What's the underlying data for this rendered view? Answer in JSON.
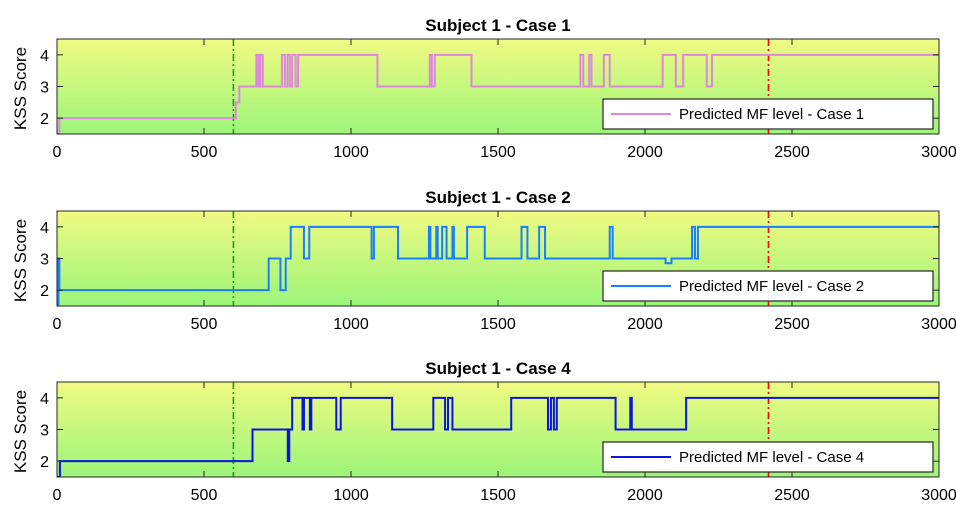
{
  "chart_data": [
    {
      "type": "line",
      "title": "Subject 1 - Case 1",
      "ylabel": "KSS Score",
      "xlabel": "",
      "xlim": [
        0,
        3000
      ],
      "ylim": [
        1.5,
        4.5
      ],
      "xticks": [
        "0",
        "500",
        "1000",
        "1500",
        "2000",
        "2500",
        "3000"
      ],
      "yticks": [
        "2",
        "3",
        "4"
      ],
      "background": "yellow-green vertical gradient",
      "vlines": [
        {
          "x": 600,
          "color": "#1aa01a",
          "style": "dash-dot"
        },
        {
          "x": 2420,
          "color": "#ff0000",
          "style": "dash-dot"
        }
      ],
      "legend_position": "bottom-right",
      "series": [
        {
          "name": "Predicted MF level - Case 1",
          "color": "#dd88dd",
          "x": [
            0,
            8,
            8,
            608,
            608,
            620,
            620,
            678,
            678,
            685,
            685,
            692,
            692,
            700,
            700,
            710,
            710,
            765,
            765,
            775,
            775,
            784,
            784,
            792,
            792,
            800,
            800,
            812,
            812,
            820,
            820,
            1090,
            1090,
            1100,
            1100,
            1110,
            1110,
            1268,
            1268,
            1275,
            1275,
            1285,
            1285,
            1410,
            1410,
            1780,
            1780,
            1790,
            1790,
            1810,
            1810,
            1818,
            1818,
            1860,
            1860,
            1880,
            1880,
            2060,
            2060,
            2105,
            2105,
            2130,
            2130,
            2210,
            2210,
            2228,
            2228,
            2238,
            2238,
            3000
          ],
          "y": [
            1.5,
            1.5,
            2,
            2,
            2.5,
            2.5,
            3,
            3,
            4,
            4,
            3,
            3,
            4,
            4,
            3,
            3,
            3,
            3,
            4,
            4,
            3,
            3,
            4,
            4,
            3,
            3,
            4,
            4,
            3,
            3,
            4,
            4,
            3,
            3,
            3,
            3,
            3,
            3,
            4,
            4,
            3,
            3,
            4,
            4,
            3,
            3,
            4,
            4,
            3,
            3,
            4,
            4,
            3,
            3,
            4,
            4,
            3,
            3,
            4,
            4,
            3,
            3,
            4,
            4,
            3,
            3,
            4,
            4,
            4,
            4
          ]
        }
      ]
    },
    {
      "type": "line",
      "title": "Subject 1 - Case 2",
      "ylabel": "KSS Score",
      "xlabel": "",
      "xlim": [
        0,
        3000
      ],
      "ylim": [
        1.5,
        4.5
      ],
      "xticks": [
        "0",
        "500",
        "1000",
        "1500",
        "2000",
        "2500",
        "3000"
      ],
      "yticks": [
        "2",
        "3",
        "4"
      ],
      "background": "yellow-green vertical gradient",
      "vlines": [
        {
          "x": 600,
          "color": "#1aa01a",
          "style": "dash-dot"
        },
        {
          "x": 2420,
          "color": "#ff0000",
          "style": "dash-dot"
        }
      ],
      "legend_position": "bottom-right",
      "series": [
        {
          "name": "Predicted MF level - Case 2",
          "color": "#1a7fff",
          "x": [
            0,
            5,
            5,
            8,
            8,
            720,
            720,
            760,
            760,
            778,
            778,
            795,
            795,
            840,
            840,
            858,
            858,
            1070,
            1070,
            1078,
            1078,
            1160,
            1160,
            1265,
            1265,
            1270,
            1270,
            1290,
            1290,
            1295,
            1295,
            1310,
            1310,
            1325,
            1325,
            1345,
            1345,
            1350,
            1350,
            1395,
            1395,
            1455,
            1455,
            1580,
            1580,
            1600,
            1600,
            1640,
            1640,
            1660,
            1660,
            1880,
            1880,
            1890,
            1890,
            2070,
            2070,
            2090,
            2090,
            2160,
            2160,
            2170,
            2170,
            2180,
            2180,
            3000
          ],
          "y": [
            1.5,
            1.5,
            3,
            3,
            2,
            2,
            3,
            3,
            2,
            2,
            3,
            3,
            4,
            4,
            3,
            3,
            4,
            4,
            3,
            3,
            4,
            4,
            3,
            3,
            4,
            4,
            3,
            3,
            4,
            4,
            3,
            3,
            4,
            4,
            3,
            3,
            4,
            4,
            3,
            3,
            4,
            4,
            3,
            3,
            4,
            4,
            3,
            3,
            4,
            4,
            3,
            3,
            4,
            4,
            3,
            3,
            2.85,
            2.85,
            3,
            3,
            4,
            4,
            3,
            3,
            4,
            4
          ]
        }
      ]
    },
    {
      "type": "line",
      "title": "Subject 1 - Case 4",
      "ylabel": "KSS Score",
      "xlabel": "",
      "xlim": [
        0,
        3000
      ],
      "ylim": [
        1.5,
        4.5
      ],
      "xticks": [
        "0",
        "500",
        "1000",
        "1500",
        "2000",
        "2500",
        "3000"
      ],
      "yticks": [
        "2",
        "3",
        "4"
      ],
      "background": "yellow-green vertical gradient",
      "vlines": [
        {
          "x": 600,
          "color": "#1aa01a",
          "style": "dash-dot"
        },
        {
          "x": 2420,
          "color": "#ff0000",
          "style": "dash-dot"
        }
      ],
      "legend_position": "bottom-right",
      "series": [
        {
          "name": "Predicted MF level - Case 4",
          "color": "#0a14dd",
          "x": [
            0,
            10,
            10,
            665,
            665,
            785,
            785,
            790,
            790,
            800,
            800,
            835,
            835,
            840,
            840,
            860,
            860,
            865,
            865,
            950,
            950,
            965,
            965,
            1140,
            1140,
            1280,
            1280,
            1320,
            1320,
            1330,
            1330,
            1345,
            1345,
            1545,
            1545,
            1670,
            1670,
            1680,
            1680,
            1690,
            1690,
            1700,
            1700,
            1900,
            1900,
            1950,
            1950,
            1955,
            1955,
            1960,
            1960,
            2140,
            2140,
            3000
          ],
          "y": [
            1.5,
            1.5,
            2,
            2,
            3,
            3,
            2,
            2,
            3,
            3,
            4,
            4,
            3,
            3,
            4,
            4,
            3,
            3,
            4,
            4,
            3,
            3,
            4,
            4,
            3,
            3,
            4,
            4,
            3,
            3,
            4,
            4,
            3,
            3,
            4,
            4,
            3,
            3,
            4,
            4,
            3,
            3,
            4,
            4,
            3,
            3,
            4,
            4,
            3,
            3,
            3,
            3,
            4,
            4
          ]
        }
      ]
    }
  ]
}
